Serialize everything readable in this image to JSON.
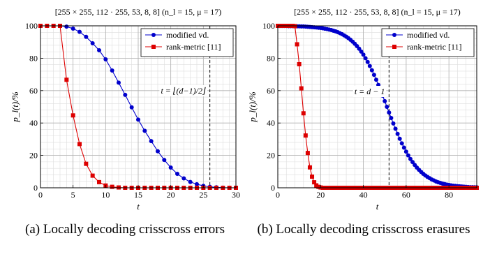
{
  "chart_data": [
    {
      "type": "line",
      "title": "[255 × 255, 112 · 255, 53, 8, 8] (n_l = 15, μ = 17)",
      "xlabel": "t",
      "ylabel": "p_l(t)/%",
      "xlim": [
        0,
        30
      ],
      "ylim": [
        0,
        100
      ],
      "xticks": [
        0,
        5,
        10,
        15,
        20,
        25,
        30
      ],
      "yticks": [
        0,
        20,
        40,
        60,
        80,
        100
      ],
      "grid": true,
      "legend_position": "top-right",
      "vline": {
        "x": 26,
        "label": "t = ⌊(d−1)/2⌋"
      },
      "series": [
        {
          "name": "modified vd.",
          "color": "#0000cc",
          "marker": "circle",
          "x": [
            3,
            4,
            5,
            6,
            7,
            8,
            9,
            10,
            11,
            12,
            13,
            14,
            15,
            16,
            17,
            18,
            19,
            20,
            21,
            22,
            23,
            24,
            25,
            26,
            27,
            28,
            29,
            30
          ],
          "y": [
            100,
            99.5,
            98.3,
            96.3,
            93.2,
            89.2,
            84.9,
            79.3,
            72.4,
            64.9,
            57.4,
            49.7,
            42.1,
            35.2,
            28.8,
            22.6,
            17.2,
            12.5,
            8.6,
            5.8,
            3.6,
            2.2,
            1.2,
            0.6,
            0.3,
            0.1,
            0.05,
            0
          ]
        },
        {
          "name": "rank-metric [11]",
          "color": "#dd0000",
          "marker": "square",
          "x": [
            0,
            1,
            2,
            3,
            4,
            5,
            6,
            7,
            8,
            9,
            10,
            11,
            12,
            13,
            14,
            15,
            16,
            17,
            18,
            19,
            20,
            21,
            22,
            23,
            24,
            25,
            26,
            27,
            28,
            29,
            30
          ],
          "y": [
            100,
            100,
            100,
            100,
            66.7,
            44.7,
            27,
            14.8,
            7.5,
            3.5,
            1.4,
            0.6,
            0.2,
            0,
            0,
            0,
            0,
            0,
            0,
            0,
            0,
            0,
            0,
            0,
            0,
            0,
            0,
            0,
            0,
            0,
            0
          ]
        }
      ]
    },
    {
      "type": "line",
      "title": "[255 × 255, 112 · 255, 53, 8, 8] (n_l = 15, μ = 17)",
      "xlabel": "t",
      "ylabel": "p_l(t)/%",
      "xlim": [
        0,
        93
      ],
      "ylim": [
        0,
        100
      ],
      "xticks": [
        0,
        20,
        40,
        60,
        80
      ],
      "yticks": [
        0,
        20,
        40,
        60,
        80,
        100
      ],
      "grid": true,
      "legend_position": "top-right",
      "vline": {
        "x": 52,
        "label": "t = d − 1"
      },
      "series": [
        {
          "name": "modified vd.",
          "color": "#0000cc",
          "marker": "circle"
        },
        {
          "name": "rank-metric [11]",
          "color": "#dd0000",
          "marker": "square",
          "x": [
            0,
            1,
            2,
            3,
            4,
            5,
            6,
            7,
            8,
            9,
            10,
            11,
            12,
            13,
            14,
            15,
            16,
            17,
            18,
            19,
            20
          ],
          "y": [
            100,
            100,
            100,
            100,
            100,
            100,
            100,
            100,
            99.8,
            88.6,
            76.3,
            61.4,
            46,
            32.3,
            21.5,
            12.6,
            6.9,
            3.4,
            1.5,
            0.6,
            0.2
          ]
        }
      ]
    }
  ],
  "captions": {
    "a": "(a) Locally decoding crisscross errors",
    "b": "(b) Locally decoding crisscross erasures"
  }
}
